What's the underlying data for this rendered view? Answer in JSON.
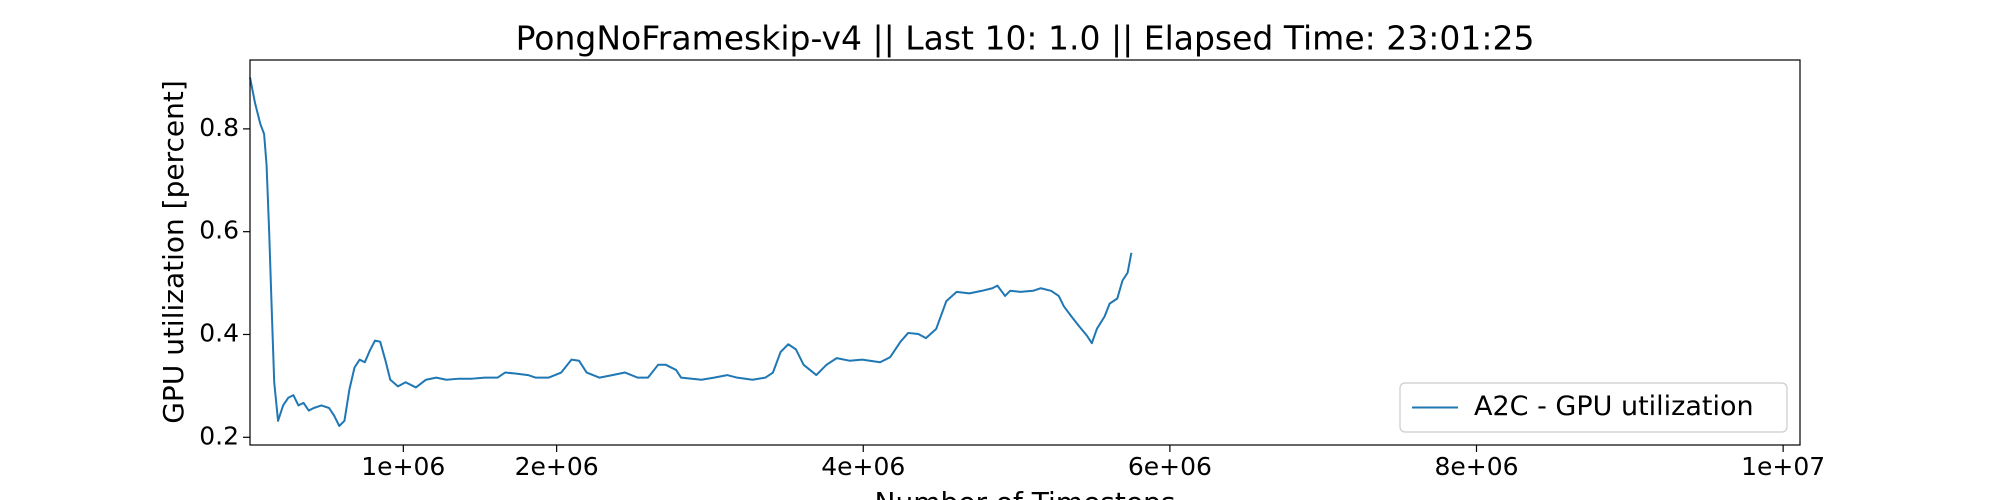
{
  "chart_data": {
    "type": "line",
    "title": "PongNoFrameskip-v4 || Last 10: 1.0 || Elapsed Time: 23:01:25",
    "x_label": "Number of Timesteps",
    "y_label": "GPU utilization [percent]",
    "legend_position": "lower right",
    "xlim": [
      0,
      10110000
    ],
    "ylim": [
      0.185,
      0.934
    ],
    "xticks": [
      {
        "value": 1000000,
        "label": "1e+06"
      },
      {
        "value": 2000000,
        "label": "2e+06"
      },
      {
        "value": 4000000,
        "label": "4e+06"
      },
      {
        "value": 6000000,
        "label": "6e+06"
      },
      {
        "value": 8000000,
        "label": "8e+06"
      },
      {
        "value": 10000000,
        "label": "1e+07"
      }
    ],
    "yticks": [
      0.2,
      0.4,
      0.6,
      0.8
    ],
    "x": [
      0,
      33000,
      67000,
      92000,
      108000,
      125000,
      141000,
      158000,
      183000,
      216000,
      250000,
      283000,
      316000,
      349000,
      383000,
      416000,
      466000,
      516000,
      549000,
      582000,
      616000,
      649000,
      682000,
      715000,
      749000,
      782000,
      815000,
      849000,
      882000,
      915000,
      965000,
      1015000,
      1082000,
      1148000,
      1215000,
      1281000,
      1364000,
      1448000,
      1531000,
      1614000,
      1664000,
      1730000,
      1814000,
      1864000,
      1947000,
      2030000,
      2097000,
      2146000,
      2196000,
      2280000,
      2363000,
      2446000,
      2529000,
      2596000,
      2662000,
      2712000,
      2779000,
      2812000,
      2945000,
      3028000,
      3112000,
      3178000,
      3278000,
      3361000,
      3411000,
      3461000,
      3511000,
      3561000,
      3611000,
      3694000,
      3760000,
      3827000,
      3910000,
      3993000,
      4110000,
      4176000,
      4243000,
      4293000,
      4359000,
      4409000,
      4476000,
      4542000,
      4609000,
      4692000,
      4775000,
      4842000,
      4875000,
      4925000,
      4958000,
      5025000,
      5108000,
      5158000,
      5225000,
      5275000,
      5308000,
      5358000,
      5408000,
      5458000,
      5491000,
      5524000,
      5574000,
      5607000,
      5657000,
      5691000,
      5724000,
      5749000
    ],
    "series": [
      {
        "name": "A2C - GPU utilization",
        "color": "#1f77b4",
        "values": [
          0.9,
          0.85,
          0.81,
          0.79,
          0.73,
          0.6,
          0.455,
          0.307,
          0.232,
          0.262,
          0.277,
          0.282,
          0.262,
          0.267,
          0.252,
          0.257,
          0.262,
          0.257,
          0.242,
          0.222,
          0.232,
          0.294,
          0.336,
          0.351,
          0.346,
          0.369,
          0.388,
          0.386,
          0.351,
          0.312,
          0.299,
          0.307,
          0.297,
          0.312,
          0.316,
          0.312,
          0.314,
          0.314,
          0.316,
          0.316,
          0.326,
          0.324,
          0.321,
          0.316,
          0.316,
          0.326,
          0.351,
          0.349,
          0.326,
          0.316,
          0.321,
          0.326,
          0.316,
          0.316,
          0.341,
          0.341,
          0.331,
          0.316,
          0.312,
          0.316,
          0.321,
          0.316,
          0.312,
          0.316,
          0.326,
          0.366,
          0.381,
          0.371,
          0.341,
          0.321,
          0.341,
          0.354,
          0.349,
          0.351,
          0.346,
          0.356,
          0.386,
          0.403,
          0.401,
          0.393,
          0.411,
          0.465,
          0.483,
          0.48,
          0.485,
          0.49,
          0.495,
          0.475,
          0.485,
          0.483,
          0.485,
          0.49,
          0.485,
          0.475,
          0.455,
          0.435,
          0.416,
          0.398,
          0.383,
          0.411,
          0.435,
          0.46,
          0.47,
          0.505,
          0.52,
          0.559
        ]
      }
    ]
  }
}
